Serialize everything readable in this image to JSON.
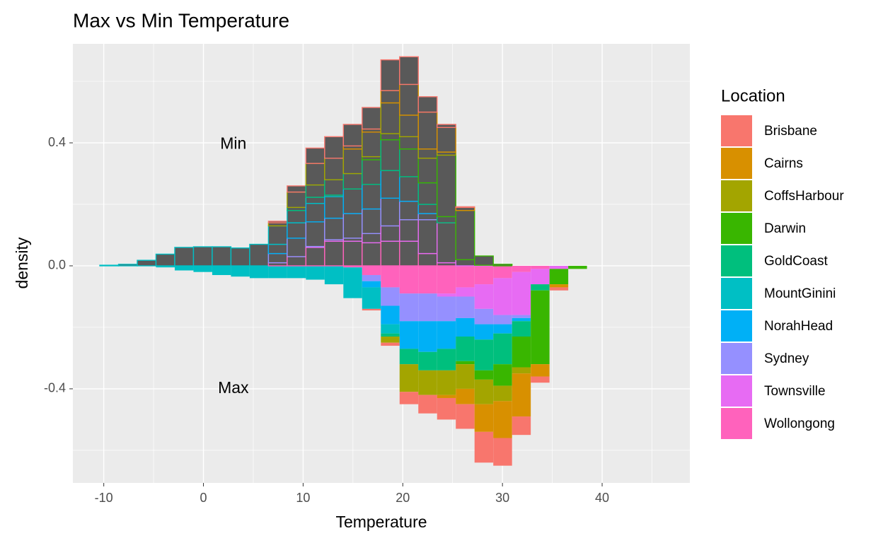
{
  "chart_data": {
    "type": "mirrored-histogram",
    "title": "Max vs Min Temperature",
    "x_label": "Temperature",
    "y_label": "density",
    "legend_title": "Location",
    "bins": [
      -10.4,
      -8.52,
      -6.64,
      -4.76,
      -2.88,
      -1.0,
      0.88,
      2.76,
      4.64,
      6.52,
      8.4,
      10.28,
      12.16,
      14.04,
      15.92,
      17.8,
      19.68,
      21.56,
      23.44,
      25.32,
      27.2,
      29.08,
      30.96,
      32.84,
      34.72,
      36.6,
      38.48,
      40.36,
      42.24,
      44.12,
      46.0
    ],
    "xlim": [
      -13.1,
      48.8
    ],
    "xticks": [
      -10,
      0,
      10,
      20,
      30,
      40
    ],
    "ylim": [
      -0.706,
      0.722
    ],
    "yticks": [
      -0.4,
      {
        "value": 0,
        "label": "0.0"
      },
      0.4
    ],
    "grid": true,
    "upper_fill": "#595959",
    "annotations": [
      {
        "text": "Min",
        "x": 3,
        "y": 0.395
      },
      {
        "text": "Max",
        "x": 3,
        "y": -0.4
      }
    ],
    "series": [
      {
        "name": "Brisbane",
        "color": "#F8766D",
        "values": [
          0,
          0,
          0,
          0,
          0,
          0,
          0,
          0,
          0,
          0.005,
          0.02,
          0.05,
          0.07,
          0.07,
          0.07,
          0.1,
          0.09,
          0.05,
          0.01,
          0.002,
          0,
          0,
          0,
          0,
          0,
          0,
          0,
          0,
          0,
          0
        ],
        "max_values": [
          0,
          0,
          0,
          0,
          0,
          0,
          0,
          0,
          0,
          0,
          0,
          0,
          0,
          0,
          -0.005,
          -0.01,
          -0.04,
          -0.06,
          -0.07,
          -0.08,
          -0.1,
          -0.09,
          -0.06,
          -0.02,
          -0.01,
          0,
          0,
          0,
          0,
          0
        ]
      },
      {
        "name": "Cairns",
        "color": "#D89000",
        "values": [
          0,
          0,
          0,
          0,
          0,
          0,
          0,
          0,
          0,
          0,
          0,
          0,
          0,
          0.01,
          0.01,
          0.04,
          0.1,
          0.12,
          0.08,
          0.01,
          0,
          0,
          0,
          0,
          0,
          0,
          0,
          0,
          0,
          0
        ],
        "max_values": [
          0,
          0,
          0,
          0,
          0,
          0,
          0,
          0,
          0,
          0,
          0,
          0,
          0,
          0,
          0,
          0,
          0,
          0,
          -0.01,
          -0.05,
          -0.09,
          -0.12,
          -0.14,
          -0.04,
          -0.01,
          0,
          0,
          0,
          0,
          0
        ]
      },
      {
        "name": "CoffsHarbour",
        "color": "#A3A500",
        "values": [
          0,
          0,
          0,
          0,
          0,
          0,
          0,
          0,
          0,
          0.01,
          0.05,
          0.07,
          0.07,
          0.08,
          0.08,
          0.1,
          0.07,
          0.03,
          0.01,
          0,
          0,
          0,
          0,
          0,
          0,
          0,
          0,
          0,
          0,
          0
        ],
        "max_values": [
          0,
          0,
          0,
          0,
          0,
          0,
          0,
          0,
          0,
          0,
          0,
          0,
          0,
          0,
          0,
          -0.02,
          -0.09,
          -0.08,
          -0.08,
          -0.08,
          -0.08,
          -0.05,
          -0.02,
          0,
          0,
          0,
          0,
          0,
          0,
          0
        ]
      },
      {
        "name": "Darwin",
        "color": "#39B600",
        "values": [
          0,
          0,
          0,
          0,
          0,
          0,
          0,
          0,
          0,
          0,
          0,
          0,
          0,
          0,
          0.01,
          0.02,
          0.04,
          0.08,
          0.2,
          0.16,
          0.03,
          0.005,
          0,
          0,
          0,
          0,
          0,
          0,
          0,
          0
        ],
        "max_values": [
          0,
          0,
          0,
          0,
          0,
          0,
          0,
          0,
          0,
          0,
          0,
          0,
          0,
          0,
          0,
          0,
          0,
          0,
          0,
          -0.01,
          -0.03,
          -0.07,
          -0.1,
          -0.24,
          -0.05,
          -0.01,
          0,
          0,
          0,
          0
        ]
      },
      {
        "name": "GoldCoast",
        "color": "#00BF7D",
        "values": [
          0,
          0,
          0,
          0,
          0,
          0,
          0,
          0,
          0,
          0,
          0.01,
          0.04,
          0.05,
          0.05,
          0.08,
          0.1,
          0.09,
          0.07,
          0.02,
          0,
          0,
          0,
          0,
          0,
          0,
          0,
          0,
          0,
          0,
          0
        ],
        "max_values": [
          0,
          0,
          0,
          0,
          0,
          0,
          0,
          0,
          0,
          0,
          0,
          0,
          0,
          0,
          0,
          -0.01,
          -0.05,
          -0.06,
          -0.07,
          -0.08,
          -0.1,
          -0.1,
          -0.05,
          -0.02,
          0,
          0,
          0,
          0,
          0,
          0
        ]
      },
      {
        "name": "MountGinini",
        "color": "#00BFC4",
        "values": [
          0.002,
          0.005,
          0.018,
          0.038,
          0.06,
          0.062,
          0.062,
          0.058,
          0.07,
          0.06,
          0.04,
          0.02,
          0.005,
          0,
          0,
          0,
          0,
          0,
          0,
          0,
          0,
          0,
          0,
          0,
          0,
          0,
          0,
          0,
          0,
          0
        ],
        "max_values": [
          0,
          0,
          0,
          -0.005,
          -0.015,
          -0.02,
          -0.03,
          -0.035,
          -0.04,
          -0.04,
          -0.04,
          -0.045,
          -0.06,
          -0.1,
          -0.07,
          -0.03,
          0,
          0,
          0,
          0,
          0,
          0,
          0,
          0,
          0,
          0,
          0,
          0,
          0,
          0
        ]
      },
      {
        "name": "NorahHead",
        "color": "#00B0F6",
        "values": [
          0,
          0,
          0,
          0,
          0,
          0,
          0,
          0,
          0,
          0.03,
          0.05,
          0.06,
          0.07,
          0.08,
          0.08,
          0.09,
          0.08,
          0.03,
          0,
          0,
          0,
          0,
          0,
          0,
          0,
          0,
          0,
          0,
          0,
          0
        ],
        "max_values": [
          0,
          0,
          0,
          0,
          0,
          0,
          0,
          0,
          0,
          0,
          0,
          0,
          0,
          0,
          -0.02,
          -0.06,
          -0.09,
          -0.1,
          -0.09,
          -0.06,
          -0.05,
          -0.03,
          -0.01,
          0,
          0,
          0,
          0,
          0,
          0,
          0
        ]
      },
      {
        "name": "Sydney",
        "color": "#9590FF",
        "values": [
          0,
          0,
          0,
          0,
          0,
          0,
          0,
          0,
          0,
          0.03,
          0.06,
          0.08,
          0.07,
          0.08,
          0.08,
          0.09,
          0.06,
          0.02,
          0,
          0,
          0,
          0,
          0,
          0,
          0,
          0,
          0,
          0,
          0,
          0
        ],
        "max_values": [
          0,
          0,
          0,
          0,
          0,
          0,
          0,
          0,
          0,
          0,
          0,
          0,
          0,
          0,
          -0.02,
          -0.06,
          -0.09,
          -0.09,
          -0.08,
          -0.07,
          -0.05,
          -0.03,
          -0.01,
          0,
          0,
          0,
          0,
          0,
          0,
          0
        ]
      },
      {
        "name": "Townsville",
        "color": "#E76BF3",
        "values": [
          0,
          0,
          0,
          0,
          0,
          0,
          0,
          0,
          0,
          0,
          0,
          0.003,
          0.005,
          0.01,
          0.03,
          0.05,
          0.07,
          0.11,
          0.13,
          0.02,
          0.002,
          0,
          0,
          0,
          0,
          0,
          0,
          0,
          0,
          0
        ],
        "max_values": [
          0,
          0,
          0,
          0,
          0,
          0,
          0,
          0,
          0,
          0,
          0,
          0,
          0,
          0,
          0,
          0,
          0,
          0,
          -0.01,
          -0.03,
          -0.08,
          -0.12,
          -0.14,
          -0.05,
          -0.01,
          0,
          0,
          0,
          0,
          0
        ]
      },
      {
        "name": "Wollongong",
        "color": "#FF62BC",
        "values": [
          0,
          0,
          0,
          0,
          0,
          0,
          0,
          0,
          0,
          0.01,
          0.03,
          0.06,
          0.08,
          0.08,
          0.075,
          0.08,
          0.08,
          0.04,
          0.01,
          0,
          0,
          0,
          0,
          0,
          0,
          0,
          0,
          0,
          0,
          0
        ],
        "max_values": [
          0,
          0,
          0,
          0,
          0,
          0,
          0,
          0,
          0,
          0,
          0,
          0,
          0,
          -0.005,
          -0.03,
          -0.07,
          -0.09,
          -0.09,
          -0.09,
          -0.07,
          -0.06,
          -0.04,
          -0.02,
          -0.01,
          0,
          0,
          0,
          0,
          0,
          0
        ]
      }
    ]
  }
}
